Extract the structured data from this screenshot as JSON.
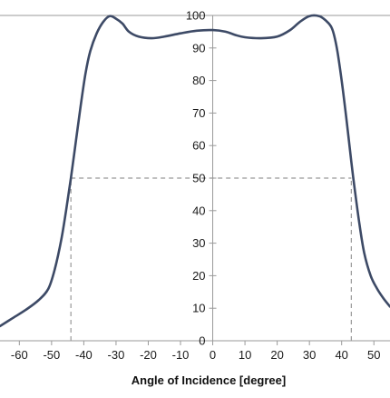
{
  "chart_data": {
    "type": "line",
    "title": "",
    "xlabel": "Angle of Incidence [degree]",
    "ylabel": "",
    "xlim": [
      -66,
      55
    ],
    "ylim": [
      0,
      100
    ],
    "x_ticks": [
      -60,
      -50,
      -40,
      -30,
      -20,
      -10,
      0,
      10,
      20,
      30,
      40,
      50
    ],
    "y_ticks": [
      0,
      10,
      20,
      30,
      40,
      50,
      60,
      70,
      80,
      90,
      100
    ],
    "grid": false,
    "colors": {
      "line": "#3d4a66",
      "reference": "#999999",
      "axis": "#9a9a9a"
    },
    "series": [
      {
        "values": [
          [
            -66,
            4.5
          ],
          [
            -62,
            7
          ],
          [
            -58,
            9.5
          ],
          [
            -54,
            12.5
          ],
          [
            -51,
            16
          ],
          [
            -49,
            22
          ],
          [
            -47,
            31
          ],
          [
            -45.5,
            40
          ],
          [
            -44,
            50
          ],
          [
            -42.5,
            61
          ],
          [
            -41,
            72
          ],
          [
            -39.5,
            82
          ],
          [
            -38,
            89
          ],
          [
            -36,
            94.5
          ],
          [
            -34,
            98
          ],
          [
            -32,
            99.8
          ],
          [
            -30,
            99
          ],
          [
            -28,
            97.5
          ],
          [
            -26,
            95
          ],
          [
            -23,
            93.5
          ],
          [
            -19,
            93
          ],
          [
            -15,
            93.5
          ],
          [
            -10,
            94.5
          ],
          [
            -5,
            95.3
          ],
          [
            0,
            95.5
          ],
          [
            4,
            95
          ],
          [
            7,
            94
          ],
          [
            10,
            93.3
          ],
          [
            15,
            93
          ],
          [
            20,
            93.5
          ],
          [
            24,
            95.5
          ],
          [
            27,
            98
          ],
          [
            30,
            99.8
          ],
          [
            33,
            99.8
          ],
          [
            35,
            98.5
          ],
          [
            37,
            96
          ],
          [
            38.5,
            90
          ],
          [
            40,
            80
          ],
          [
            41.5,
            68
          ],
          [
            43,
            55
          ],
          [
            44,
            47
          ],
          [
            45.5,
            36
          ],
          [
            47,
            27
          ],
          [
            49,
            20
          ],
          [
            51,
            16
          ],
          [
            53,
            13
          ],
          [
            55,
            10.5
          ]
        ]
      }
    ],
    "reference_lines": [
      {
        "y": 50,
        "x_from": -44,
        "x_to": 43
      },
      {
        "x": -44,
        "y_from": 0,
        "y_to": 50
      },
      {
        "x": 43,
        "y_from": 0,
        "y_to": 50
      }
    ]
  }
}
